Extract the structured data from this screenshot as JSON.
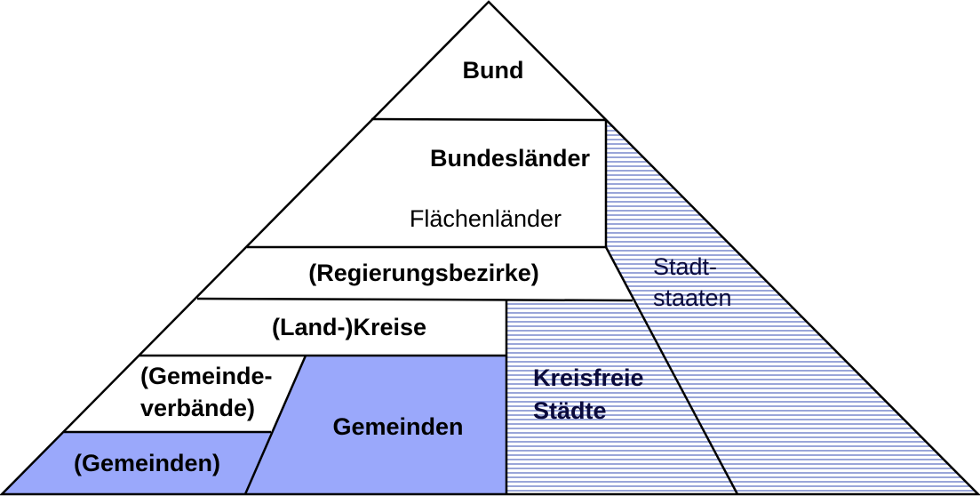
{
  "labels": {
    "bund": "Bund",
    "bundeslaender": "Bundesländer",
    "flaechenlaender": "Flächenländer",
    "regierungsbezirke": "(Regierungsbezirke)",
    "landkreise": "(Land-)Kreise",
    "gemeindeverbaende_line1": "(Gemeinde-",
    "gemeindeverbaende_line2": "verbände)",
    "gemeinden_left": "(Gemeinden)",
    "gemeinden_center": "Gemeinden",
    "kreisfreie_line1": "Kreisfreie",
    "kreisfreie_line2": "Städte",
    "stadtstaaten_line1": "Stadt-",
    "stadtstaaten_line2": "staaten"
  },
  "colors": {
    "gemeinden_fill": "#9aa8fb",
    "hatch_line": "#6f7fc9",
    "outline": "#000000"
  }
}
